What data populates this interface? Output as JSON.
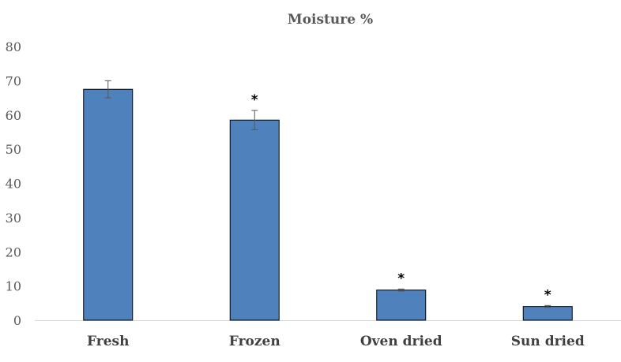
{
  "chart_data": {
    "type": "bar",
    "title": "Moisture %",
    "xlabel": "",
    "ylabel": "",
    "categories": [
      "Fresh",
      "Frozen",
      "Oven dried",
      "Sun dried"
    ],
    "values": [
      67.5,
      58.5,
      8.8,
      4.0
    ],
    "error": [
      2.5,
      2.8,
      0.3,
      0.3
    ],
    "significance": [
      "",
      "*",
      "*",
      "*"
    ],
    "ylim": [
      0,
      80
    ],
    "yticks": [
      "0",
      "10",
      "20",
      "30",
      "40",
      "50",
      "60",
      "70",
      "80"
    ],
    "grid": false,
    "legend": "none",
    "bar_color": "#4F81BD",
    "bar_edge_color": "#000000",
    "error_bar_color": "#595959"
  }
}
